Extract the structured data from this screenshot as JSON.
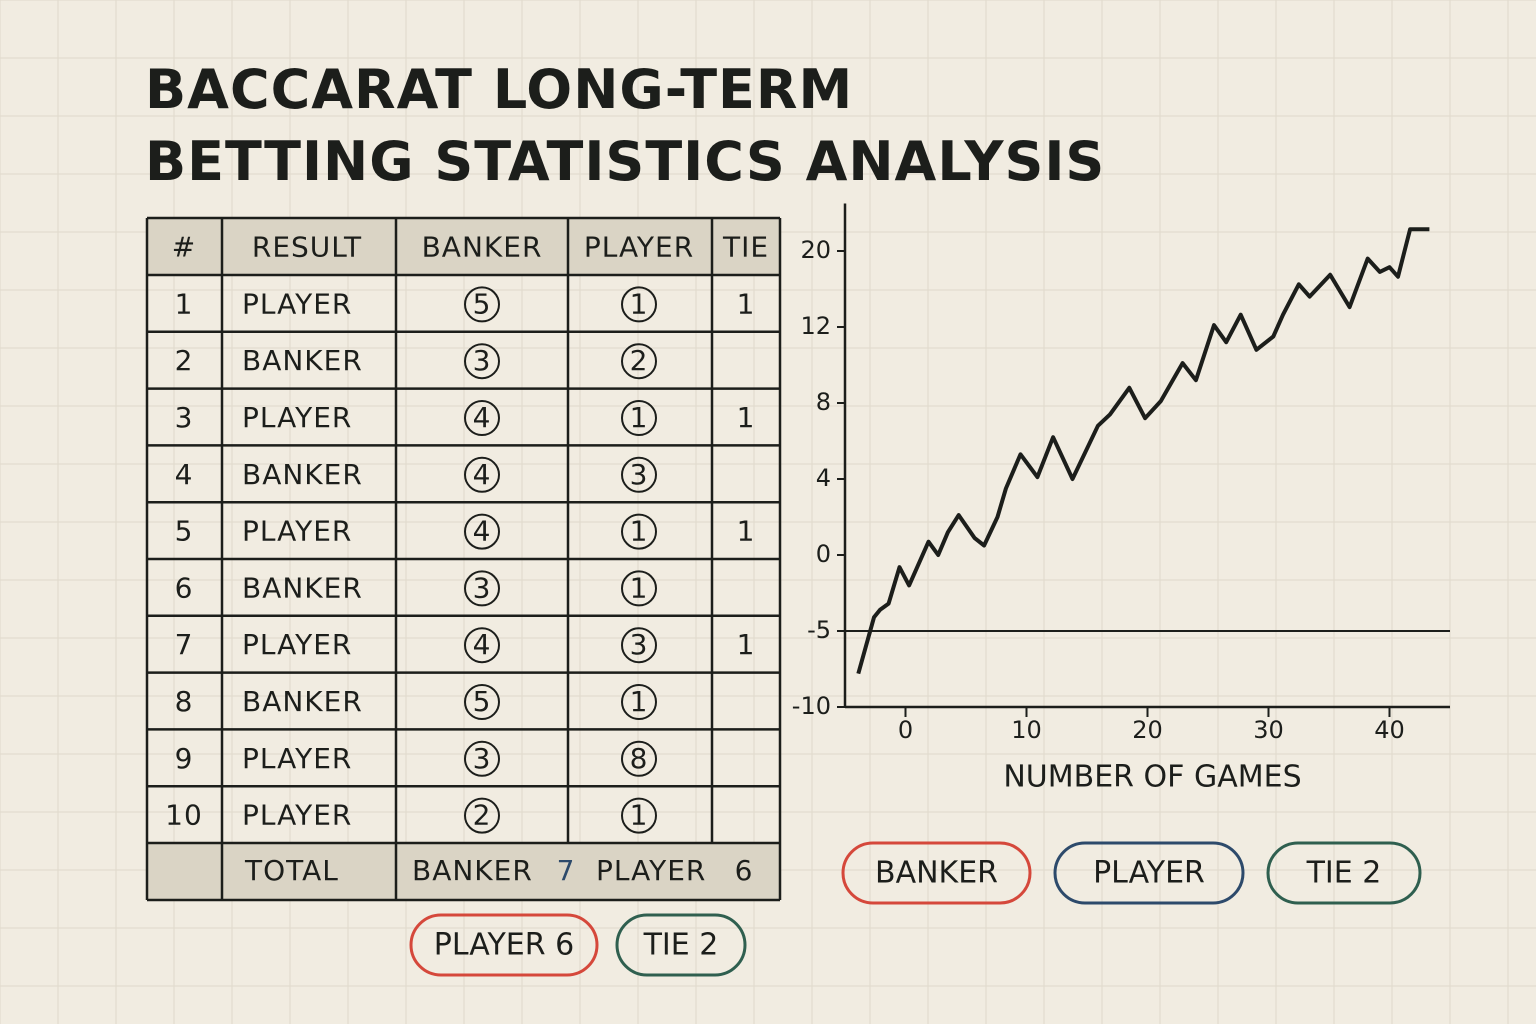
{
  "header": {
    "title_lines": [
      "BACCARAT LONG-TERM",
      "BETTING STATISTICS ANALYSIS"
    ]
  },
  "table": {
    "headers": [
      "#",
      "RESULT",
      "BANKER",
      "PLAYER",
      "TIE"
    ],
    "rows": [
      [
        "1",
        "PLAYER",
        5,
        1,
        1
      ],
      [
        "2",
        "BANKER",
        3,
        2,
        null
      ],
      [
        "3",
        "PLAYER",
        4,
        1,
        1
      ],
      [
        "4",
        "BANKER",
        4,
        3,
        null
      ],
      [
        "5",
        "PLAYER",
        4,
        1,
        1
      ],
      [
        "6",
        "BANKER",
        3,
        1,
        null
      ],
      [
        "7",
        "PLAYER",
        4,
        3,
        1
      ],
      [
        "8",
        "BANKER",
        5,
        1,
        null
      ],
      [
        "9",
        "PLAYER",
        3,
        8,
        null
      ],
      [
        "10",
        "PLAYER",
        2,
        1,
        null
      ]
    ],
    "total": {
      "label": "TOTAL",
      "banker_label": "BANKER",
      "banker": 7,
      "player_label": "PLAYER",
      "player": 6
    }
  },
  "table_buttons": [
    {
      "label": "PLAYER 6",
      "color": "#d5483b"
    },
    {
      "label": "TIE 2",
      "color": "#2f5f4f"
    }
  ],
  "chart_data": {
    "type": "line",
    "x_label": "NUMBER OF GAMES",
    "color": "#1c1e1b",
    "x": [
      -3.9,
      -2.6,
      -2.1,
      -1.4,
      -0.5,
      0.3,
      1.9,
      2.7,
      3.5,
      4.4,
      5.7,
      6.5,
      7.6,
      8.3,
      9.5,
      10.9,
      12.2,
      13.8,
      15.9,
      16.9,
      18.5,
      19.8,
      21.1,
      22.9,
      24.0,
      25.5,
      26.5,
      27.7,
      29.0,
      30.4,
      31.2,
      32.5,
      33.4,
      35.1,
      36.7,
      38.2,
      39.2,
      40.0,
      40.7,
      41.7,
      43.3
    ],
    "values": [
      -7.8,
      -4.1,
      -3.6,
      -3.2,
      -0.8,
      -2.0,
      0.7,
      0,
      1.2,
      2.1,
      0.9,
      0.5,
      2.0,
      3.5,
      5.3,
      4.1,
      6.2,
      4.0,
      6.8,
      7.4,
      8.8,
      7.2,
      8.1,
      10.1,
      9.2,
      12.2,
      11.2,
      13.3,
      10.8,
      11.5,
      13.3,
      16.5,
      15.2,
      17.5,
      14.1,
      19.2,
      17.8,
      18.3,
      17.3,
      22.3,
      22.3
    ],
    "xlim": [
      -5,
      45
    ],
    "xticks": [
      0,
      10,
      20,
      30,
      40
    ],
    "ylim": [
      -10,
      25
    ],
    "yticks": [
      -10,
      -5,
      0,
      4,
      8,
      12,
      20
    ],
    "reference_line": -5
  },
  "chart_buttons": [
    {
      "label": "BANKER",
      "color": "#d5483b"
    },
    {
      "label": "PLAYER",
      "color": "#2d4a6b"
    },
    {
      "label": "TIE 2",
      "color": "#2f5f4f"
    }
  ]
}
